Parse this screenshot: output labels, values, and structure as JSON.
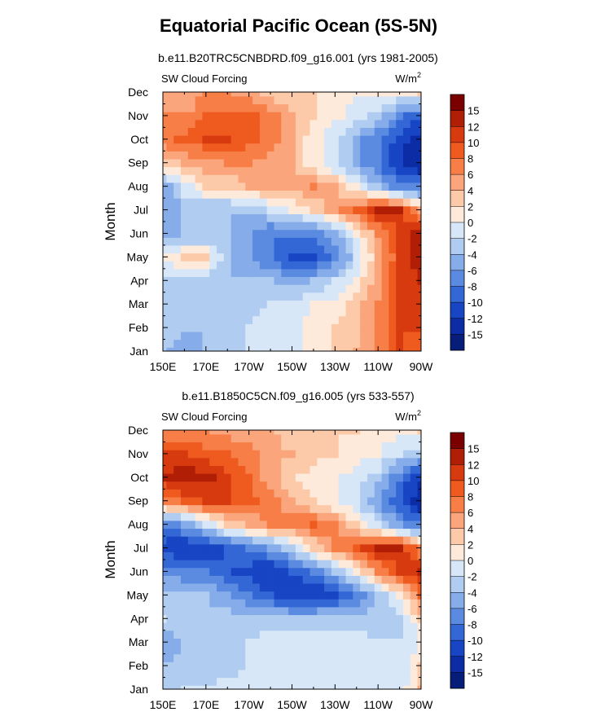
{
  "page_title": "Equatorial Pacific Ocean (5S-5N)",
  "months": [
    "Jan",
    "Feb",
    "Mar",
    "Apr",
    "May",
    "Jun",
    "Jul",
    "Aug",
    "Sep",
    "Oct",
    "Nov",
    "Dec"
  ],
  "longitude_ticks": [
    "150E",
    "170E",
    "170W",
    "150W",
    "130W",
    "110W",
    "90W"
  ],
  "colorbar_labels": [
    "15",
    "12",
    "10",
    "8",
    "6",
    "4",
    "2",
    "0",
    "-2",
    "-4",
    "-6",
    "-8",
    "-10",
    "-12",
    "-15"
  ],
  "colorbar_colors": [
    "#7a0000",
    "#b01e06",
    "#d83a10",
    "#ef5a1e",
    "#f77e46",
    "#fba57c",
    "#fdcaa9",
    "#feeadb",
    "#d7e7f8",
    "#b0cdf1",
    "#86adea",
    "#5b8be0",
    "#3467d6",
    "#1745c4",
    "#0b2ca4",
    "#061d7a"
  ],
  "chart_data": [
    {
      "type": "heatmap",
      "subtitle": "b.e11.B20TRC5CNBDRD.f09_g16.001 (yrs 1981-2005)",
      "field_label": "SW Cloud Forcing",
      "units": "W/m",
      "units_sup": "2",
      "ylabel": "Month",
      "x_range": [
        "150E",
        "90W"
      ],
      "y_range": [
        "Jan",
        "Dec"
      ],
      "value_range": [
        -15,
        15
      ],
      "x": [
        "150E",
        "160E",
        "170E",
        "180",
        "170W",
        "160W",
        "150W",
        "140W",
        "130W",
        "120W",
        "110W",
        "100W",
        "90W"
      ],
      "y": [
        "Jan",
        "Feb",
        "Mar",
        "Apr",
        "May",
        "Jun",
        "Jul",
        "Aug",
        "Sep",
        "Oct",
        "Nov",
        "Dec"
      ],
      "z": [
        [
          -4,
          -5,
          -4,
          -3,
          -2,
          -2,
          -1,
          1,
          2,
          4,
          6,
          10,
          8
        ],
        [
          -3,
          -4,
          -4,
          -3,
          -2,
          -1,
          -1,
          1,
          2,
          3,
          6,
          10,
          10
        ],
        [
          -3,
          -4,
          -4,
          -4,
          -3,
          -2,
          -2,
          0,
          1,
          3,
          6,
          10,
          11
        ],
        [
          -3,
          -3,
          -3,
          -4,
          -4,
          -4,
          -5,
          -4,
          -2,
          1,
          5,
          10,
          12
        ],
        [
          1,
          2,
          2,
          -4,
          -6,
          -8,
          -11,
          -11,
          -8,
          -2,
          4,
          10,
          14
        ],
        [
          -5,
          -4,
          -4,
          -4,
          -6,
          -8,
          -8,
          -7,
          -5,
          0,
          6,
          10,
          14
        ],
        [
          -6,
          -4,
          -4,
          -4,
          -4,
          -2,
          0,
          2,
          5,
          8,
          12,
          12,
          4
        ],
        [
          -6,
          -1,
          2,
          2,
          4,
          5,
          5,
          6,
          4,
          0,
          -4,
          -8,
          -8
        ],
        [
          3,
          4,
          5,
          6,
          6,
          5,
          4,
          1,
          -2,
          -5,
          -8,
          -12,
          -14
        ],
        [
          7,
          9,
          10,
          10,
          9,
          7,
          4,
          1,
          -2,
          -5,
          -8,
          -11,
          -13
        ],
        [
          6,
          6,
          8,
          9,
          9,
          7,
          4,
          2,
          1,
          -1,
          -3,
          -7,
          -10
        ],
        [
          4,
          4,
          6,
          6,
          5,
          3,
          2,
          2,
          1,
          0,
          0,
          0,
          2
        ]
      ]
    },
    {
      "type": "heatmap",
      "subtitle": "b.e11.B1850C5CN.f09_g16.005 (yrs 533-557)",
      "field_label": "SW Cloud Forcing",
      "units": "W/m",
      "units_sup": "2",
      "ylabel": "Month",
      "x_range": [
        "150E",
        "90W"
      ],
      "y_range": [
        "Jan",
        "Dec"
      ],
      "value_range": [
        -15,
        15
      ],
      "x": [
        "150E",
        "160E",
        "170E",
        "180",
        "170W",
        "160W",
        "150W",
        "140W",
        "130W",
        "120W",
        "110W",
        "100W",
        "90W"
      ],
      "y": [
        "Jan",
        "Feb",
        "Mar",
        "Apr",
        "May",
        "Jun",
        "Jul",
        "Aug",
        "Sep",
        "Oct",
        "Nov",
        "Dec"
      ],
      "z": [
        [
          -3,
          -2,
          -2,
          -1,
          -1,
          -1,
          -1,
          -1,
          -1,
          -1,
          -1,
          -2,
          4
        ],
        [
          -4,
          -3,
          -3,
          -3,
          -2,
          -1,
          -1,
          -1,
          -1,
          -1,
          -1,
          -2,
          2
        ],
        [
          -6,
          -4,
          -3,
          -3,
          -2,
          -1,
          -1,
          -1,
          -1,
          -1,
          -2,
          -2,
          0
        ],
        [
          -2,
          -3,
          -3,
          -3,
          -3,
          -3,
          -3,
          -3,
          -3,
          -3,
          -3,
          -3,
          2
        ],
        [
          -3,
          -4,
          -4,
          -6,
          -8,
          -10,
          -12,
          -12,
          -11,
          -8,
          -4,
          1,
          8
        ],
        [
          -7,
          -7,
          -8,
          -10,
          -11,
          -12,
          -10,
          -8,
          -4,
          0,
          6,
          10,
          12
        ],
        [
          -11,
          -12,
          -12,
          -10,
          -8,
          -6,
          -3,
          2,
          6,
          9,
          12,
          12,
          6
        ],
        [
          -8,
          -6,
          -2,
          2,
          4,
          6,
          7,
          8,
          6,
          2,
          -2,
          -6,
          -8
        ],
        [
          6,
          8,
          10,
          10,
          9,
          7,
          4,
          2,
          0,
          -2,
          -6,
          -10,
          -14
        ],
        [
          12,
          14,
          13,
          10,
          8,
          5,
          2,
          1,
          0,
          -1,
          -3,
          -8,
          -12
        ],
        [
          10,
          10,
          9,
          8,
          7,
          5,
          4,
          3,
          2,
          1,
          0,
          -2,
          -4
        ],
        [
          6,
          6,
          6,
          5,
          5,
          4,
          3,
          3,
          2,
          2,
          1,
          1,
          2
        ]
      ]
    }
  ]
}
